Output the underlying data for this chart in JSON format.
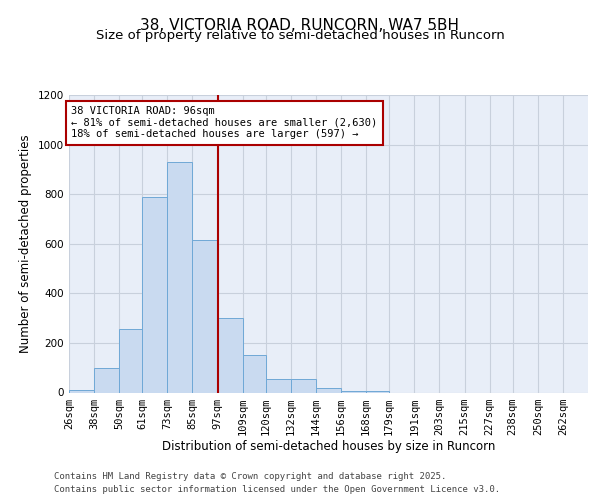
{
  "title_line1": "38, VICTORIA ROAD, RUNCORN, WA7 5BH",
  "title_line2": "Size of property relative to semi-detached houses in Runcorn",
  "xlabel": "Distribution of semi-detached houses by size in Runcorn",
  "ylabel": "Number of semi-detached properties",
  "footer_line1": "Contains HM Land Registry data © Crown copyright and database right 2025.",
  "footer_line2": "Contains public sector information licensed under the Open Government Licence v3.0.",
  "annotation_title": "38 VICTORIA ROAD: 96sqm",
  "annotation_line1": "← 81% of semi-detached houses are smaller (2,630)",
  "annotation_line2": "18% of semi-detached houses are larger (597) →",
  "bin_labels": [
    "26sqm",
    "38sqm",
    "50sqm",
    "61sqm",
    "73sqm",
    "85sqm",
    "97sqm",
    "109sqm",
    "120sqm",
    "132sqm",
    "144sqm",
    "156sqm",
    "168sqm",
    "179sqm",
    "191sqm",
    "203sqm",
    "215sqm",
    "227sqm",
    "238sqm",
    "250sqm",
    "262sqm"
  ],
  "bin_edges": [
    26,
    38,
    50,
    61,
    73,
    85,
    97,
    109,
    120,
    132,
    144,
    156,
    168,
    179,
    191,
    203,
    215,
    227,
    238,
    250,
    262
  ],
  "bar_heights": [
    10,
    100,
    255,
    790,
    930,
    615,
    300,
    150,
    55,
    55,
    20,
    5,
    5,
    0,
    0,
    0,
    0,
    0,
    0,
    0,
    0
  ],
  "bar_color": "#c9daf0",
  "bar_edgecolor": "#6fa8d6",
  "vline_x": 97,
  "vline_color": "#aa0000",
  "ylim": [
    0,
    1200
  ],
  "yticks": [
    0,
    200,
    400,
    600,
    800,
    1000,
    1200
  ],
  "grid_color": "#c8d0dc",
  "bg_color": "#e8eef8",
  "annotation_box_color": "#ffffff",
  "annotation_box_edgecolor": "#aa0000",
  "title_fontsize": 11,
  "subtitle_fontsize": 9.5,
  "axis_label_fontsize": 8.5,
  "tick_fontsize": 7.5,
  "footer_fontsize": 6.5,
  "annotation_fontsize": 7.5
}
